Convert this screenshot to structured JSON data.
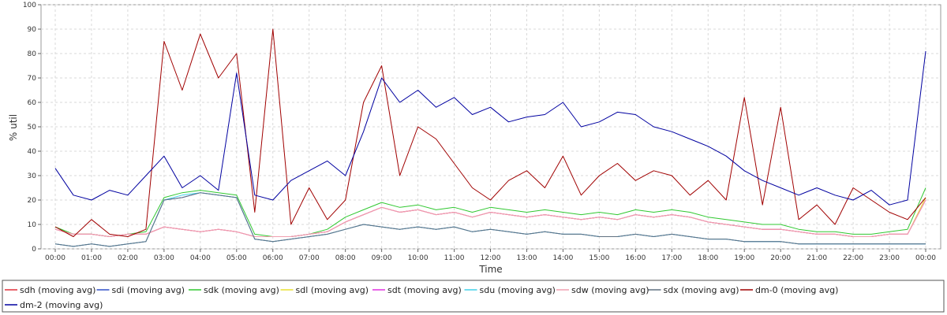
{
  "chart_data": {
    "type": "line",
    "xlabel": "Time",
    "ylabel": "% util",
    "ylim": [
      0,
      100
    ],
    "y_ticks": [
      0,
      10,
      20,
      30,
      40,
      50,
      60,
      70,
      80,
      90,
      100
    ],
    "x_ticks": [
      "00:00",
      "01:00",
      "02:00",
      "03:00",
      "04:00",
      "05:00",
      "06:00",
      "07:00",
      "08:00",
      "09:00",
      "10:00",
      "11:00",
      "12:00",
      "13:00",
      "14:00",
      "15:00",
      "16:00",
      "17:00",
      "18:00",
      "19:00",
      "20:00",
      "21:00",
      "22:00",
      "23:00",
      "00:00"
    ],
    "grid": true,
    "legend_position": "bottom",
    "x_hours": [
      0,
      0.5,
      1,
      1.5,
      2,
      2.5,
      3,
      3.5,
      4,
      4.5,
      5,
      5.5,
      6,
      6.5,
      7,
      7.5,
      8,
      8.5,
      9,
      9.5,
      10,
      10.5,
      11,
      11.5,
      12,
      12.5,
      13,
      13.5,
      14,
      14.5,
      15,
      15.5,
      16,
      16.5,
      17,
      17.5,
      18,
      18.5,
      19,
      19.5,
      20,
      20.5,
      21,
      21.5,
      22,
      22.5,
      23,
      23.5,
      24
    ],
    "series": [
      {
        "name": "sdh (moving avg)",
        "color": "#e0303a",
        "values": [
          8,
          6,
          6,
          5,
          6,
          6,
          9,
          8,
          7,
          8,
          7,
          5,
          5,
          5,
          6,
          7,
          11,
          14,
          17,
          15,
          16,
          14,
          15,
          13,
          15,
          14,
          13,
          14,
          13,
          12,
          13,
          12,
          14,
          13,
          14,
          13,
          11,
          10,
          9,
          8,
          8,
          7,
          6,
          6,
          5,
          5,
          6,
          6,
          20
        ]
      },
      {
        "name": "sdi (moving avg)",
        "color": "#3050c8",
        "values": [
          2,
          1,
          2,
          1,
          2,
          3,
          20,
          21,
          23,
          22,
          21,
          4,
          3,
          4,
          5,
          6,
          8,
          10,
          9,
          8,
          9,
          8,
          9,
          7,
          8,
          7,
          6,
          7,
          6,
          6,
          5,
          5,
          6,
          5,
          6,
          5,
          4,
          4,
          3,
          3,
          3,
          2,
          2,
          2,
          2,
          2,
          2,
          2,
          2
        ]
      },
      {
        "name": "sdk (moving avg)",
        "color": "#30c830",
        "values": [
          9,
          6,
          6,
          5,
          6,
          7,
          21,
          23,
          24,
          23,
          22,
          6,
          5,
          5,
          6,
          8,
          13,
          16,
          19,
          17,
          18,
          16,
          17,
          15,
          17,
          16,
          15,
          16,
          15,
          14,
          15,
          14,
          16,
          15,
          16,
          15,
          13,
          12,
          11,
          10,
          10,
          8,
          7,
          7,
          6,
          6,
          7,
          8,
          25
        ]
      },
      {
        "name": "sdl (moving avg)",
        "color": "#e8e030",
        "values": [
          8,
          6,
          6,
          5,
          6,
          6,
          9,
          8,
          7,
          8,
          7,
          5,
          5,
          5,
          6,
          7,
          11,
          14,
          17,
          15,
          16,
          14,
          15,
          13,
          15,
          14,
          13,
          14,
          13,
          12,
          13,
          12,
          14,
          13,
          14,
          13,
          11,
          10,
          9,
          8,
          8,
          7,
          6,
          6,
          5,
          5,
          6,
          6,
          21
        ]
      },
      {
        "name": "sdt (moving avg)",
        "color": "#e030e0",
        "values": [
          8,
          6,
          6,
          5,
          6,
          6,
          9,
          8,
          7,
          8,
          7,
          5,
          5,
          5,
          6,
          7,
          11,
          14,
          17,
          15,
          16,
          14,
          15,
          13,
          15,
          14,
          13,
          14,
          13,
          12,
          13,
          12,
          14,
          13,
          14,
          13,
          11,
          10,
          9,
          8,
          8,
          7,
          6,
          6,
          5,
          5,
          6,
          6,
          20
        ]
      },
      {
        "name": "sdu (moving avg)",
        "color": "#40d0e8",
        "values": [
          2,
          1,
          2,
          1,
          2,
          3,
          20,
          22,
          23,
          22,
          21,
          4,
          3,
          4,
          5,
          6,
          8,
          10,
          9,
          8,
          9,
          8,
          9,
          7,
          8,
          7,
          6,
          7,
          6,
          6,
          5,
          5,
          6,
          5,
          6,
          5,
          4,
          4,
          3,
          3,
          3,
          2,
          2,
          2,
          2,
          2,
          2,
          2,
          2
        ]
      },
      {
        "name": "sdw (moving avg)",
        "color": "#f0a0b0",
        "values": [
          8,
          6,
          6,
          5,
          6,
          6,
          9,
          8,
          7,
          8,
          7,
          5,
          5,
          5,
          6,
          7,
          11,
          14,
          17,
          15,
          16,
          14,
          15,
          13,
          15,
          14,
          13,
          14,
          13,
          12,
          13,
          12,
          14,
          13,
          14,
          13,
          11,
          10,
          9,
          8,
          8,
          7,
          6,
          6,
          5,
          5,
          6,
          6,
          20
        ]
      },
      {
        "name": "sdx (moving avg)",
        "color": "#607080",
        "values": [
          2,
          1,
          2,
          1,
          2,
          3,
          20,
          21,
          23,
          22,
          21,
          4,
          3,
          4,
          5,
          6,
          8,
          10,
          9,
          8,
          9,
          8,
          9,
          7,
          8,
          7,
          6,
          7,
          6,
          6,
          5,
          5,
          6,
          5,
          6,
          5,
          4,
          4,
          3,
          3,
          3,
          2,
          2,
          2,
          2,
          2,
          2,
          2,
          2
        ]
      },
      {
        "name": "dm-0 (moving avg)",
        "color": "#a00000",
        "values": [
          9,
          5,
          12,
          6,
          5,
          8,
          85,
          65,
          88,
          70,
          80,
          15,
          90,
          10,
          25,
          12,
          20,
          60,
          75,
          30,
          50,
          45,
          35,
          25,
          20,
          28,
          32,
          25,
          38,
          22,
          30,
          35,
          28,
          32,
          30,
          22,
          28,
          20,
          62,
          18,
          58,
          12,
          18,
          10,
          25,
          20,
          15,
          12,
          21
        ]
      },
      {
        "name": "dm-2 (moving avg)",
        "color": "#0000a0",
        "values": [
          33,
          22,
          20,
          24,
          22,
          30,
          38,
          25,
          30,
          24,
          72,
          22,
          20,
          28,
          32,
          36,
          30,
          48,
          70,
          60,
          65,
          58,
          62,
          55,
          58,
          52,
          54,
          55,
          60,
          50,
          52,
          56,
          55,
          50,
          48,
          45,
          42,
          38,
          32,
          28,
          25,
          22,
          25,
          22,
          20,
          24,
          18,
          20,
          81
        ]
      }
    ]
  }
}
